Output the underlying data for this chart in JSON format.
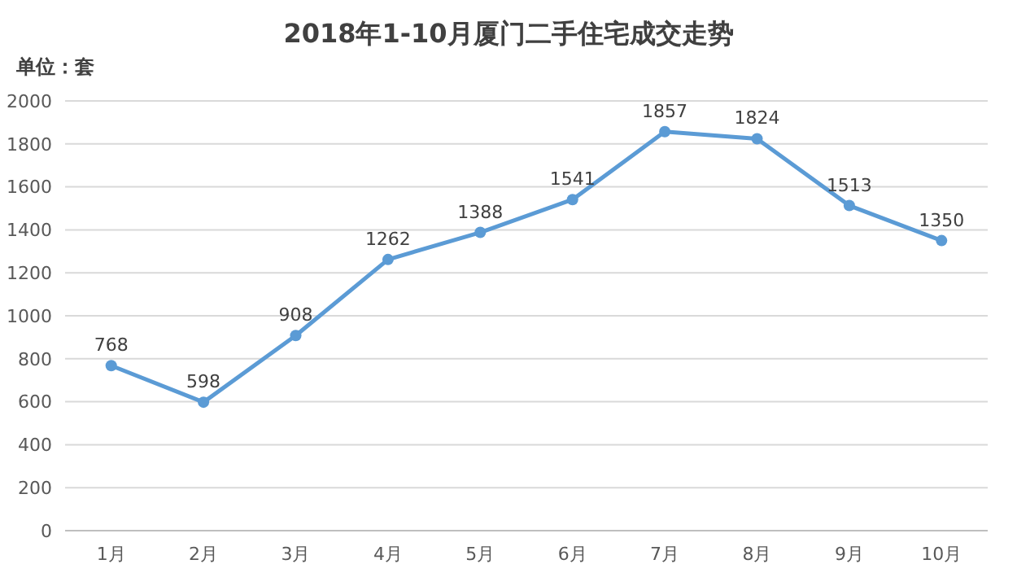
{
  "chart_data": {
    "type": "line",
    "title": "2018年1-10月厦门二手住宅成交走势",
    "annotations": [
      "单位：套"
    ],
    "categories": [
      "1月",
      "2月",
      "3月",
      "4月",
      "5月",
      "6月",
      "7月",
      "8月",
      "9月",
      "10月"
    ],
    "series": [
      {
        "color": "#5b9bd5",
        "values": [
          768,
          598,
          908,
          1262,
          1388,
          1541,
          1857,
          1824,
          1513,
          1350
        ]
      }
    ],
    "ylim": [
      0,
      2000
    ],
    "yticks": [
      0,
      200,
      400,
      600,
      800,
      1000,
      1200,
      1400,
      1600,
      1800,
      2000
    ],
    "grid": "y",
    "marker": "circle",
    "line_style": "solid",
    "data_labels": true
  }
}
